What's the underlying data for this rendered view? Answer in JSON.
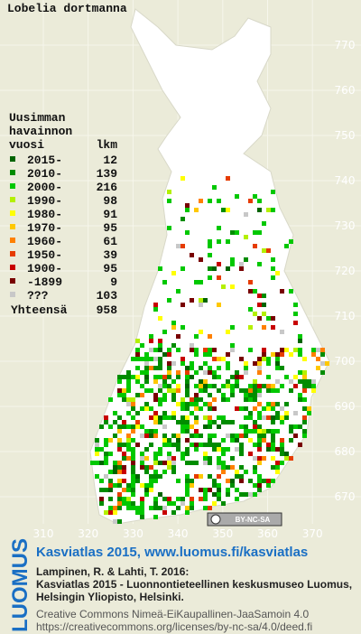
{
  "title": "Lobelia dortmanna",
  "legend": {
    "heading": [
      "Uusimman",
      "havainnon",
      "vuosi"
    ],
    "count_heading": "lkm",
    "rows": [
      {
        "label": "2015-",
        "count": 12,
        "color": "#006400"
      },
      {
        "label": "2010-",
        "count": 139,
        "color": "#008c00"
      },
      {
        "label": "2000-",
        "count": 216,
        "color": "#00c800"
      },
      {
        "label": "1990-",
        "count": 98,
        "color": "#b4f000"
      },
      {
        "label": "1980-",
        "count": 91,
        "color": "#ffff00"
      },
      {
        "label": "1970-",
        "count": 95,
        "color": "#ffc800"
      },
      {
        "label": "1960-",
        "count": 61,
        "color": "#ff8000"
      },
      {
        "label": "1950-",
        "count": 39,
        "color": "#e63c00"
      },
      {
        "label": "1900-",
        "count": 95,
        "color": "#c80000"
      },
      {
        "label": "-1899",
        "count": 9,
        "color": "#780000"
      },
      {
        "label": "???",
        "count": 103,
        "color": "#c8c8c8"
      }
    ],
    "total_label": "Yhteensä",
    "total": 958
  },
  "axes": {
    "x_labels": [
      310,
      320,
      330,
      340,
      350,
      360,
      370
    ],
    "y_labels": [
      670,
      680,
      690,
      700,
      710,
      720,
      730,
      740,
      750,
      760,
      770
    ]
  },
  "license_badge": "BY-NC-SA",
  "footer": {
    "logo": "LUOMUS",
    "link": "Kasviatlas 2015, www.luomus.fi/kasviatlas",
    "citation": [
      "Lampinen, R. & Lahti, T. 2016:",
      "Kasviatlas 2015 - Luonnontieteellinen keskusmuseo Luomus,",
      "Helsingin Yliopisto, Helsinki."
    ],
    "license": [
      "Creative Commons Nimeä-EiKaupallinen-JaaSamoin 4.0",
      "https://creativecommons.org/licenses/by-nc-sa/4.0/deed.fi"
    ]
  }
}
